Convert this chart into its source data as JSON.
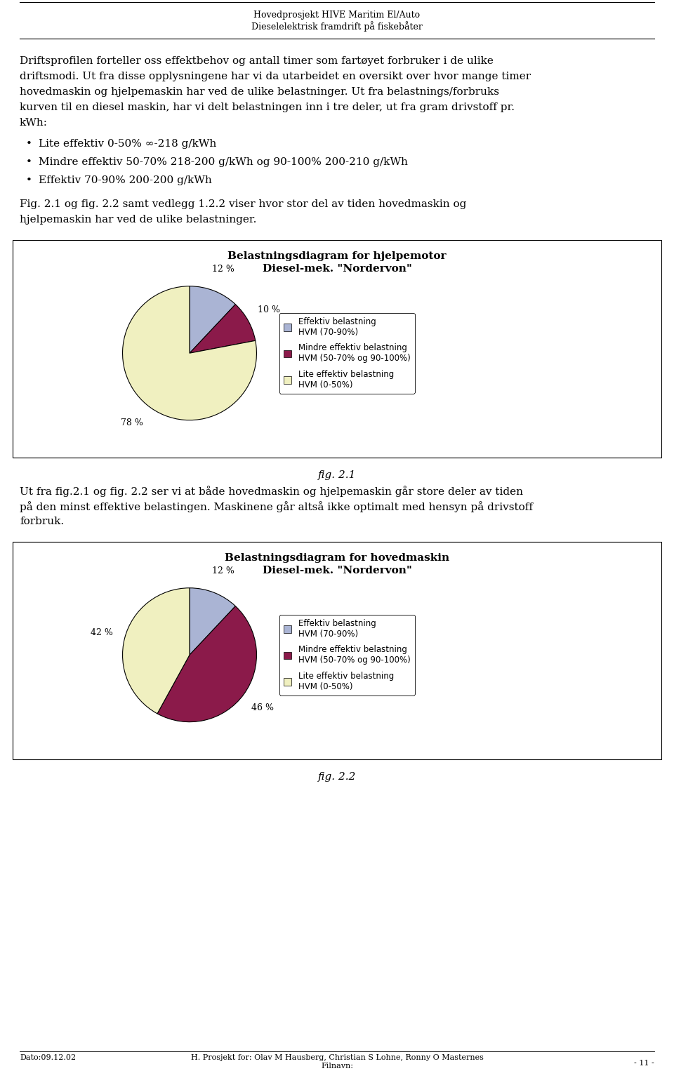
{
  "page_title_line1": "Hovedprosjekt HIVE Maritim El/Auto",
  "page_title_line2": "Dieselelektrisk framdrift på fiskebåter",
  "body_text_lines": [
    "Driftsprofilen forteller oss effektbehov og antall timer som fartøyet forbruker i de ulike",
    "driftsmodi. Ut fra disse opplysningene har vi da utarbeidet en oversikt over hvor mange timer",
    "hovedmaskin og hjelpemaskin har ved de ulike belastninger. Ut fra belastnings/forbruks",
    "kurven til en diesel maskin, har vi delt belastningen inn i tre deler, ut fra gram drivstoff pr.",
    "kWh:"
  ],
  "bullet1": "Lite effektiv 0-50% ∞-218 g/kWh",
  "bullet2": "Mindre effektiv 50-70% 218-200 g/kWh og 90-100% 200-210 g/kWh",
  "bullet3": "Effektiv 70-90% 200-200 g/kWh",
  "fig21_pre_lines": [
    "Fig. 2.1 og fig. 2.2 samt vedlegg 1.2.2 viser hvor stor del av tiden hovedmaskin og",
    "hjelpemaskin har ved de ulike belastninger."
  ],
  "fig21_title_line1": "Belastningsdiagram for hjelpemotor",
  "fig21_title_line2": "Diesel-mek. \"Nordervon\"",
  "fig21_values": [
    12,
    10,
    78
  ],
  "fig21_colors": [
    "#aab4d4",
    "#8b1a4a",
    "#f0f0c0"
  ],
  "fig21_pct_labels": [
    "12 %",
    "10 %",
    "78 %"
  ],
  "fig21_caption": "fig. 2.1",
  "fig22_pre_lines": [
    "Ut fra fig.2.1 og fig. 2.2 ser vi at både hovedmaskin og hjelpemaskin går store deler av tiden",
    "på den minst effektive belastingen. Maskinene går altså ikke optimalt med hensyn på drivstoff",
    "forbruk."
  ],
  "fig22_title_line1": "Belastningsdiagram for hovedmaskin",
  "fig22_title_line2": "Diesel-mek. \"Nordervon\"",
  "fig22_values": [
    12,
    46,
    42
  ],
  "fig22_colors": [
    "#aab4d4",
    "#8b1a4a",
    "#f0f0c0"
  ],
  "fig22_pct_labels": [
    "12 %",
    "46 %",
    "42 %"
  ],
  "fig22_caption": "fig. 2.2",
  "legend_labels": [
    "Effektiv belastning\nHVM (70-90%)",
    "Mindre effektiv belastning\nHVM (50-70% og 90-100%)",
    "Lite effektiv belastning\nHVM (0-50%)"
  ],
  "legend_colors": [
    "#aab4d4",
    "#8b1a4a",
    "#f0f0c0"
  ],
  "footer_left": "Dato:09.12.02",
  "footer_center_line1": "H. Prosjekt for: Olav M Hausberg, Christian S Lohne, Ronny O Masternes",
  "footer_center_line2": "Filnavn:",
  "footer_right": "- 11 -",
  "bg": "#ffffff",
  "fg": "#000000"
}
